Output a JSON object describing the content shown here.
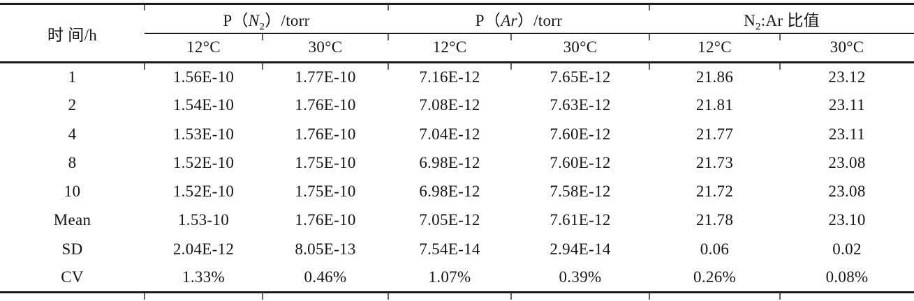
{
  "table": {
    "header": {
      "time_label": "时 间/h",
      "groups": [
        {
          "pre": "P（",
          "sym": "N",
          "sub": "2",
          "post": "）/torr"
        },
        {
          "pre": "P（",
          "sym": "Ar",
          "sub": "",
          "post": "）/torr"
        },
        {
          "pre": "",
          "sym": "N",
          "sub": "2",
          "post": ":Ar 比值"
        }
      ],
      "subheaders": [
        "12°C",
        "30°C",
        "12°C",
        "30°C",
        "12°C",
        "30°C"
      ]
    },
    "rows": [
      {
        "label": "1",
        "values": [
          "1.56E-10",
          "1.77E-10",
          "7.16E-12",
          "7.65E-12",
          "21.86",
          "23.12"
        ]
      },
      {
        "label": "2",
        "values": [
          "1.54E-10",
          "1.76E-10",
          "7.08E-12",
          "7.63E-12",
          "21.81",
          "23.11"
        ]
      },
      {
        "label": "4",
        "values": [
          "1.53E-10",
          "1.76E-10",
          "7.04E-12",
          "7.60E-12",
          "21.77",
          "23.11"
        ]
      },
      {
        "label": "8",
        "values": [
          "1.52E-10",
          "1.75E-10",
          "6.98E-12",
          "7.60E-12",
          "21.73",
          "23.08"
        ]
      },
      {
        "label": "10",
        "values": [
          "1.52E-10",
          "1.75E-10",
          "6.98E-12",
          "7.58E-12",
          "21.72",
          "23.08"
        ]
      },
      {
        "label": "Mean",
        "values": [
          "1.53-10",
          "1.76E-10",
          "7.05E-12",
          "7.61E-12",
          "21.78",
          "23.10"
        ]
      },
      {
        "label": "SD",
        "values": [
          "2.04E-12",
          "8.05E-13",
          "7.54E-14",
          "2.94E-14",
          "0.06",
          "0.02"
        ]
      },
      {
        "label": "CV",
        "values": [
          "1.33%",
          "0.46%",
          "1.07%",
          "0.39%",
          "0.26%",
          "0.08%"
        ]
      }
    ]
  },
  "colors": {
    "text": "#141414",
    "rule": "#1b1b1b",
    "background": "#ffffff"
  }
}
